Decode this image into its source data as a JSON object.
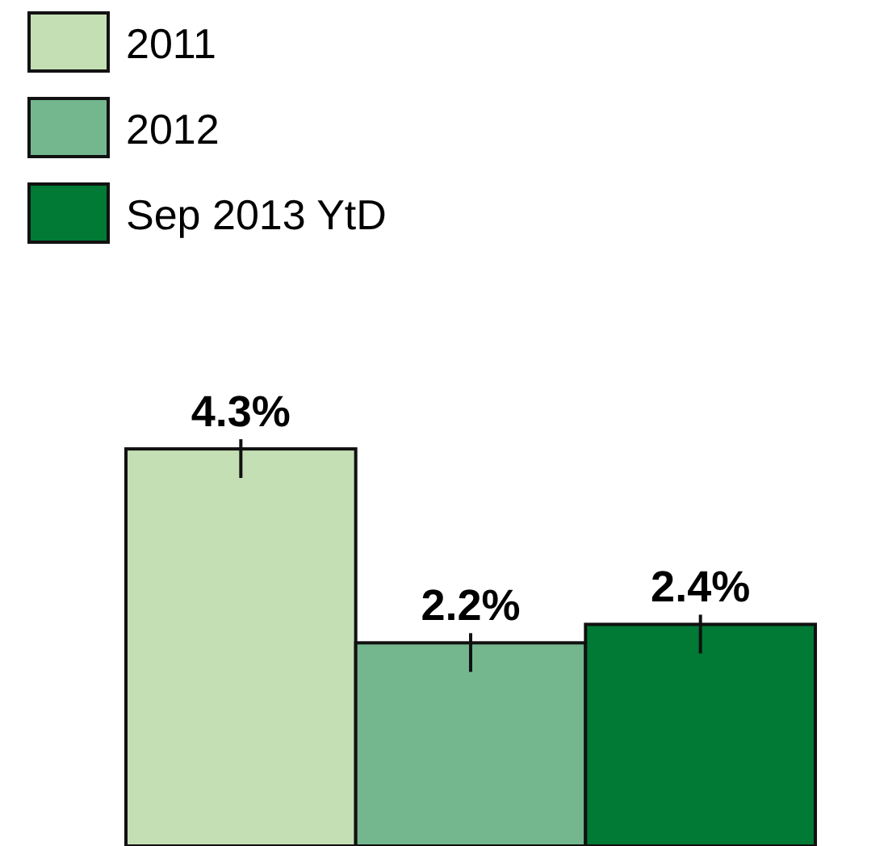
{
  "chart_data": {
    "type": "bar",
    "categories": [
      null
    ],
    "legend": "top left",
    "series": [
      {
        "name": "2011",
        "color": "#c5dfb5",
        "values": [
          4.3
        ],
        "value_labels": [
          "4.3%"
        ]
      },
      {
        "name": "2012",
        "color": "#74b78f",
        "values": [
          2.2
        ],
        "value_labels": [
          "2.2%"
        ]
      },
      {
        "name": "Sep 2013 YtD",
        "color": "#007a35",
        "values": [
          2.4
        ],
        "value_labels": [
          "2.4%"
        ]
      }
    ]
  }
}
